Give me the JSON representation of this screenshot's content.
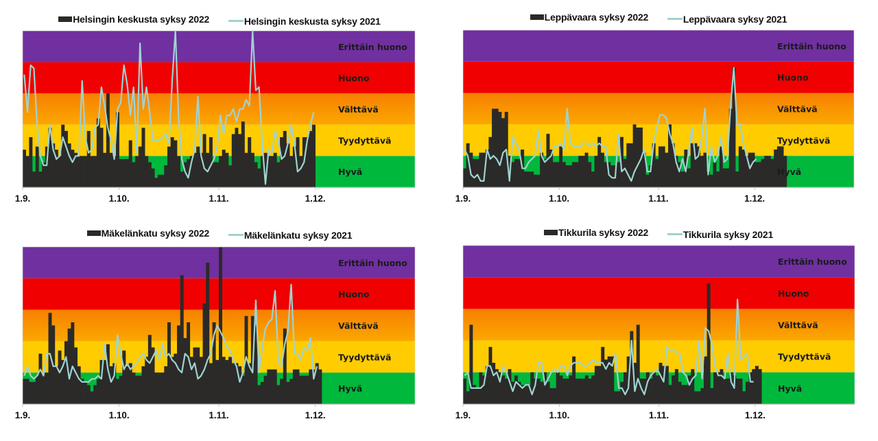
{
  "bands": [
    {
      "name": "Hyvä",
      "from": 0,
      "to": 1,
      "color": "#00b83c"
    },
    {
      "name": "Tyydyttävä",
      "from": 1,
      "to": 2,
      "color": "#ffcc00"
    },
    {
      "name": "Välttävä",
      "from": 2,
      "to": 3,
      "color_top": "#f77f00",
      "color_bottom": "#fba800"
    },
    {
      "name": "Huono",
      "from": 3,
      "to": 4,
      "color": "#f00000"
    },
    {
      "name": "Erittäin huono",
      "from": 4,
      "to": 5,
      "color": "#7030a0"
    }
  ],
  "colors": {
    "bar_2022": "#2b2a29",
    "line_2021": "#9fd3d0",
    "axis": "#bfbfbf"
  },
  "chart_data": [
    {
      "type": "bar+line",
      "title": "",
      "legend": [
        "Helsingin keskusta syksy 2022",
        "Helsingin keskusta syksy 2021"
      ],
      "xlabel": "",
      "ylabel": "",
      "x_ticks": [
        "1.9.",
        "1.10.",
        "1.11.",
        "1.12."
      ],
      "x_range_days": [
        0,
        122
      ],
      "ylim": [
        0,
        5
      ],
      "units": "air quality index band (0-1 Hyvä … 4-5 Erittäin huono)",
      "series": [
        {
          "name": "Helsingin keskusta syksy 2022",
          "kind": "bar",
          "values": [
            1.2,
            1.0,
            1.6,
            0.5,
            1.3,
            0.5,
            0.8,
            1.3,
            1.9,
            1.4,
            1.2,
            1.0,
            2.0,
            1.8,
            1.4,
            1.2,
            1.1,
            1.0,
            1.0,
            1.0,
            1.8,
            1.0,
            1.0,
            2.2,
            1.9,
            1.1,
            3.0,
            1.1,
            1.0,
            2.4,
            0.9,
            0.9,
            0.9,
            1.5,
            0.8,
            1.0,
            1.3,
            1.9,
            1.0,
            0.8,
            0.6,
            0.3,
            0.4,
            0.4,
            0.7,
            1.3,
            1.6,
            1.5,
            1.0,
            0.5,
            0.8,
            0.9,
            1.0,
            1.1,
            1.3,
            1.1,
            1.7,
            1.1,
            1.6,
            0.8,
            0.8,
            1.0,
            1.2,
            1.1,
            0.7,
            1.7,
            1.9,
            1.7,
            2.1,
            1.1,
            1.6,
            1.1,
            0.8,
            0.6,
            1.0,
            1.1,
            1.0,
            1.0,
            1.1,
            0.8,
            1.6,
            1.8,
            1.4,
            1.0,
            1.3,
            1.6,
            1.0,
            1.6,
            1.6,
            1.8,
            2.0
          ]
        },
        {
          "name": "Helsingin keskusta syksy 2021",
          "kind": "line",
          "values": [
            3.6,
            2.4,
            3.9,
            3.8,
            2.0,
            1.0,
            0.7,
            0.7,
            2.0,
            1.2,
            0.9,
            1.0,
            1.6,
            1.3,
            1.0,
            0.8,
            1.0,
            1.0,
            3.4,
            1.6,
            1.1,
            1.2,
            1.9,
            2.0,
            3.2,
            2.6,
            1.9,
            1.5,
            0.9,
            2.5,
            2.7,
            3.9,
            3.3,
            2.3,
            3.2,
            1.1,
            4.6,
            2.5,
            3.2,
            2.4,
            1.5,
            1.5,
            1.5,
            1.6,
            1.7,
            1.4,
            3.4,
            5.2,
            2.2,
            0.9,
            0.5,
            0.3,
            0.8,
            1.2,
            2.9,
            1.0,
            0.6,
            0.5,
            0.7,
            0.9,
            1.3,
            2.3,
            1.7,
            2.3,
            2.3,
            2.5,
            2.1,
            2.5,
            2.5,
            2.8,
            2.6,
            5.2,
            3.1,
            3.2,
            1.4,
            0.1,
            1.2,
            1.1,
            1.8,
            1.5,
            0.9,
            1.0,
            1.4,
            2.0,
            1.4,
            0.5,
            0.6,
            0.8,
            1.5,
            2.0,
            2.4
          ]
        }
      ]
    },
    {
      "type": "bar+line",
      "title": "",
      "legend": [
        "Leppävaara syksy 2022",
        "Leppävaara syksy 2021"
      ],
      "xlabel": "",
      "ylabel": "",
      "x_ticks": [
        "1.9.",
        "1.10.",
        "1.11.",
        "1.12."
      ],
      "x_range_days": [
        0,
        122
      ],
      "ylim": [
        0,
        5
      ],
      "units": "air quality index band (0-1 Hyvä … 4-5 Erittäin huono)",
      "series": [
        {
          "name": "Leppävaara syksy 2022",
          "kind": "bar",
          "values": [
            0.6,
            1.4,
            1.1,
            0.9,
            0.9,
            1.1,
            1.1,
            1.2,
            1.6,
            2.5,
            2.5,
            2.4,
            2.2,
            2.4,
            1.0,
            0.8,
            0.9,
            0.9,
            1.2,
            0.5,
            0.5,
            0.5,
            0.4,
            0.4,
            1.1,
            0.9,
            1.7,
            1.2,
            0.8,
            0.8,
            1.3,
            0.8,
            0.7,
            0.7,
            0.8,
            0.8,
            1.0,
            1.0,
            1.1,
            0.8,
            0.5,
            1.0,
            1.6,
            1.1,
            0.8,
            0.8,
            0.7,
            0.7,
            0.8,
            1.6,
            0.9,
            1.4,
            1.4,
            2.0,
            1.9,
            1.9,
            1.1,
            0.4,
            0.7,
            1.4,
            0.9,
            1.3,
            1.3,
            1.1,
            2.0,
            1.4,
            1.0,
            0.8,
            0.5,
            1.2,
            0.6,
            1.4,
            1.4,
            1.3,
            1.0,
            1.1,
            0.5,
            0.4,
            0.8,
            0.5,
            1.3,
            0.6,
            0.6,
            2.5,
            3.8,
            0.5,
            1.3,
            1.2,
            1.0,
            1.1,
            1.1,
            0.8,
            0.8,
            0.9,
            1.0,
            1.0,
            0.9,
            1.2,
            1.3,
            1.3,
            1.0
          ]
        },
        {
          "name": "Leppävaara syksy 2021",
          "kind": "line",
          "values": [
            1.2,
            1.0,
            0.4,
            0.3,
            0.4,
            0.2,
            0.2,
            1.2,
            0.9,
            1.0,
            0.9,
            0.7,
            1.1,
            1.2,
            0.2,
            1.6,
            1.4,
            1.2,
            0.6,
            0.6,
            0.8,
            0.9,
            1.0,
            1.8,
            1.0,
            0.8,
            0.9,
            1.0,
            1.3,
            1.3,
            1.4,
            1.2,
            2.5,
            1.4,
            1.3,
            1.3,
            1.3,
            1.4,
            1.4,
            1.3,
            1.4,
            1.3,
            1.4,
            1.3,
            1.3,
            0.4,
            0.3,
            0.3,
            1.7,
            0.5,
            0.6,
            0.4,
            0.2,
            0.5,
            0.7,
            0.9,
            1.2,
            0.5,
            0.5,
            1.4,
            1.9,
            2.3,
            2.3,
            2.2,
            1.7,
            1.4,
            0.8,
            0.5,
            0.9,
            0.5,
            1.2,
            1.9,
            0.9,
            1.0,
            1.6,
            2.5,
            0.4,
            1.3,
            0.8,
            1.0,
            1.6,
            0.8,
            0.9,
            2.6,
            3.8,
            2.0,
            2.0,
            1.4,
            1.0,
            0.6,
            0.8,
            0.9
          ]
        }
      ]
    },
    {
      "type": "bar+line",
      "title": "",
      "legend": [
        "Mäkelänkatu syksy 2022",
        "Mäkelänkatu syksy 2021"
      ],
      "xlabel": "",
      "ylabel": "",
      "x_ticks": [
        "1.9.",
        "1.10.",
        "1.11.",
        "1.12."
      ],
      "x_range_days": [
        0,
        122
      ],
      "ylim": [
        0,
        5
      ],
      "units": "air quality index band (0-1 Hyvä … 4-5 Erittäin huono)",
      "series": [
        {
          "name": "Mäkelänkatu syksy 2022",
          "kind": "bar",
          "values": [
            0.8,
            0.8,
            0.7,
            0.7,
            0.9,
            1.6,
            1.0,
            1.0,
            2.9,
            2.5,
            1.2,
            1.7,
            1.4,
            2.0,
            2.4,
            2.6,
            1.8,
            1.2,
            0.8,
            0.7,
            0.6,
            0.4,
            0.6,
            0.8,
            1.4,
            1.4,
            1.9,
            1.2,
            1.3,
            0.8,
            0.9,
            1.7,
            1.2,
            1.3,
            1.0,
            0.9,
            0.9,
            1.2,
            1.5,
            2.2,
            1.8,
            1.0,
            1.0,
            1.0,
            1.2,
            2.6,
            1.5,
            1.6,
            2.5,
            4.1,
            2.1,
            2.6,
            1.5,
            1.8,
            1.8,
            1.5,
            3.2,
            4.5,
            1.3,
            2.6,
            1.4,
            5.2,
            1.5,
            1.4,
            1.5,
            1.3,
            1.3,
            1.2,
            0.9,
            2.8,
            1.3,
            2.8,
            2.5,
            0.6,
            0.7,
            0.9,
            1.1,
            1.1,
            1.1,
            0.6,
            0.8,
            2.4,
            0.7,
            0.8,
            1.1,
            1.1,
            0.9,
            0.9,
            0.9,
            1.1,
            1.1,
            1.3,
            1.1
          ]
        },
        {
          "name": "Mäkelänkatu syksy 2021",
          "kind": "line",
          "values": [
            0.9,
            1.2,
            0.9,
            0.8,
            0.9,
            1.1,
            0.9,
            1.6,
            1.6,
            1.2,
            1.2,
            1.0,
            1.2,
            1.5,
            0.8,
            1.2,
            1.0,
            0.8,
            0.7,
            0.7,
            0.7,
            0.8,
            0.8,
            0.9,
            0.8,
            1.9,
            1.1,
            0.7,
            0.9,
            2.2,
            1.6,
            1.1,
            1.3,
            1.1,
            1.2,
            1.3,
            1.5,
            1.6,
            1.4,
            1.3,
            1.5,
            1.7,
            1.4,
            1.9,
            1.5,
            1.6,
            1.4,
            1.3,
            1.1,
            1.0,
            1.6,
            1.5,
            1.1,
            1.3,
            0.8,
            0.9,
            1.1,
            1.4,
            1.6,
            2.2,
            2.5,
            2.3,
            2.1,
            1.8,
            1.7,
            1.4,
            1.2,
            0.7,
            1.0,
            1.5,
            1.2,
            1.0,
            3.3,
            1.0,
            1.8,
            2.4,
            2.6,
            2.7,
            3.6,
            1.3,
            1.2,
            1.9,
            2.3,
            3.8,
            1.6,
            1.6,
            1.4,
            1.8,
            1.7,
            2.1,
            0.8,
            1.2
          ]
        }
      ]
    },
    {
      "type": "bar+line",
      "title": "",
      "legend": [
        "Tikkurila syksy 2022",
        "Tikkurila syksy 2021"
      ],
      "xlabel": "",
      "ylabel": "",
      "x_ticks": [
        "1.9.",
        "1.10.",
        "1.11.",
        "1.12."
      ],
      "x_range_days": [
        0,
        122
      ],
      "ylim": [
        0,
        5
      ],
      "units": "air quality index band (0-1 Hyvä … 4-5 Erittäin huono)",
      "series": [
        {
          "name": "Tikkurila syksy 2022",
          "kind": "bar",
          "values": [
            0.8,
            0.4,
            2.5,
            0.6,
            0.5,
            1.0,
            0.9,
            1.2,
            1.8,
            1.3,
            1.1,
            1.0,
            0.9,
            0.8,
            1.1,
            0.7,
            0.9,
            0.7,
            0.6,
            0.6,
            0.6,
            1.0,
            0.8,
            0.8,
            0.7,
            1.0,
            0.7,
            0.5,
            0.5,
            1.0,
            0.9,
            0.8,
            0.8,
            0.9,
            1.5,
            0.8,
            0.8,
            0.8,
            0.9,
            0.8,
            0.9,
            1.2,
            1.2,
            1.8,
            1.4,
            1.5,
            1.5,
            0.4,
            0.4,
            0.7,
            1.0,
            1.5,
            2.3,
            1.3,
            2.5,
            0.8,
            0.8,
            1.0,
            0.8,
            1.0,
            0.9,
            1.3,
            1.2,
            1.2,
            0.6,
            0.9,
            1.1,
            0.7,
            0.6,
            0.6,
            0.9,
            1.1,
            0.4,
            0.4,
            0.5,
            1.5,
            3.8,
            0.5,
            1.0,
            1.0,
            1.1,
            0.8,
            0.8,
            1.0,
            0.9,
            0.8,
            0.8,
            0.4,
            0.7,
            1.0,
            1.1,
            1.2,
            1.1
          ]
        },
        {
          "name": "Tikkurila syksy 2021",
          "kind": "line",
          "values": [
            0.9,
            1.0,
            0.5,
            0.5,
            0.5,
            0.5,
            0.6,
            1.2,
            1.2,
            0.9,
            1.0,
            0.7,
            1.2,
            1.0,
            0.7,
            0.4,
            0.7,
            0.6,
            0.5,
            0.6,
            0.6,
            0.3,
            0.6,
            1.3,
            1.3,
            0.6,
            0.8,
            1.0,
            1.1,
            1.0,
            1.2,
            1.2,
            0.9,
            1.2,
            1.3,
            1.3,
            1.3,
            1.2,
            1.2,
            1.3,
            1.4,
            1.3,
            1.3,
            1.3,
            1.1,
            1.3,
            1.2,
            1.6,
            0.5,
            0.5,
            0.3,
            0.5,
            2.0,
            0.4,
            0.8,
            0.5,
            0.3,
            0.7,
            0.9,
            1.0,
            1.1,
            0.9,
            0.7,
            1.8,
            1.7,
            1.7,
            1.6,
            1.6,
            1.0,
            0.9,
            0.6,
            0.8,
            0.9,
            2.0,
            0.8,
            2.4,
            2.3,
            1.9,
            1.2,
            0.9,
            0.9,
            0.8,
            1.6,
            0.7,
            0.5,
            3.3,
            1.4,
            1.5,
            1.6,
            0.7,
            0.7
          ]
        }
      ]
    }
  ]
}
